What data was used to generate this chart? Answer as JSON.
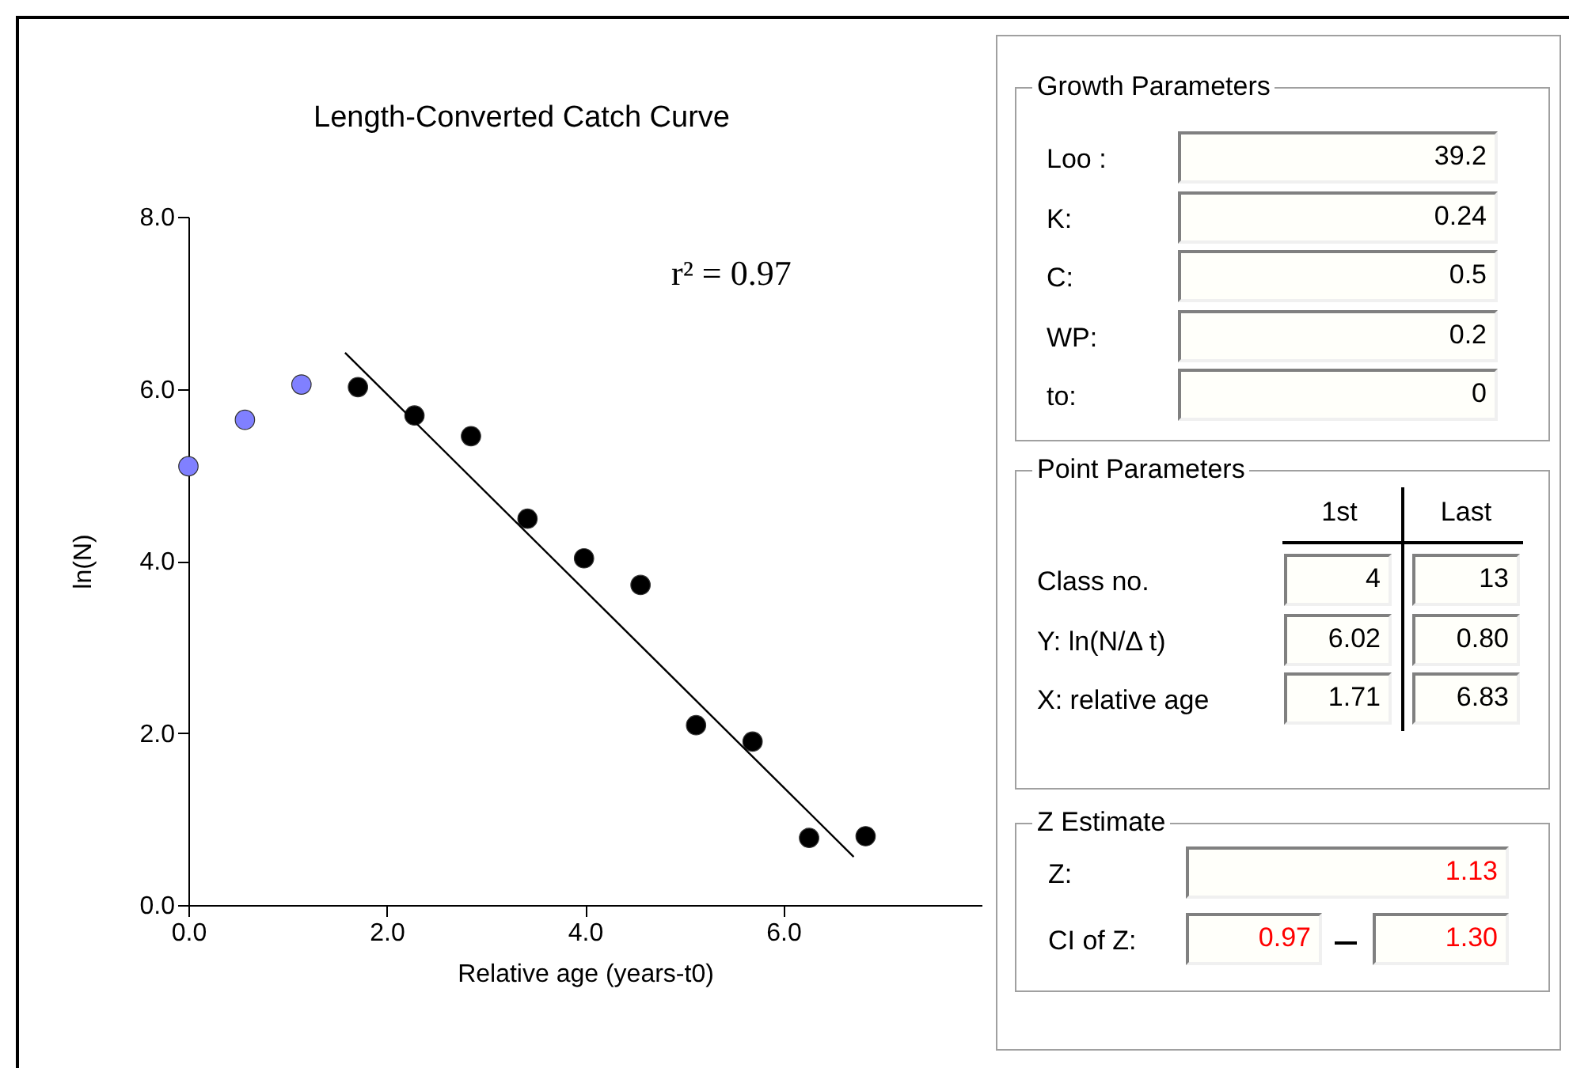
{
  "chart_data": [
    {
      "type": "scatter",
      "title": "Length-Converted Catch Curve",
      "xlabel": "Relative age (years-t0)",
      "ylabel": "ln(N)",
      "annotations": [
        "r² = 0.97"
      ],
      "xlim": [
        0,
        8
      ],
      "xticks": [
        {
          "value": 0,
          "label": "0.0"
        },
        {
          "value": 2,
          "label": "2.0"
        },
        {
          "value": 4,
          "label": "4.0"
        },
        {
          "value": 6,
          "label": "6.0"
        }
      ],
      "ylim": [
        0,
        8
      ],
      "yticks": [
        {
          "value": 0,
          "label": "0.0"
        },
        {
          "value": 2,
          "label": "2.0"
        },
        {
          "value": 4,
          "label": "4.0"
        },
        {
          "value": 6,
          "label": "6.0"
        },
        {
          "value": 8,
          "label": "8.0"
        }
      ],
      "series": [
        {
          "type": "scatter",
          "marker": "circle",
          "color": "#8080ff",
          "x": [
            0,
            0.57,
            1.14
          ],
          "values": [
            5.1,
            5.64,
            6.05
          ]
        },
        {
          "type": "scatter",
          "marker": "circle",
          "color": "#000000",
          "x": [
            1.71,
            2.28,
            2.85,
            3.42,
            3.99,
            4.56,
            5.12,
            5.69,
            6.26,
            6.83
          ],
          "values": [
            6.02,
            5.69,
            5.45,
            4.49,
            4.03,
            3.72,
            2.09,
            1.9,
            0.78,
            0.8
          ]
        },
        {
          "type": "line",
          "color": "#000000",
          "x": [
            1.58,
            6.71
          ],
          "values": [
            6.42,
            0.56
          ]
        }
      ]
    },
    {
      "type": "other",
      "title": "Growth Parameters",
      "y_categories": [
        "Loo :",
        "K:",
        "C:",
        "WP:",
        "to:"
      ],
      "cell_labels": [
        [
          "39.2"
        ],
        [
          "0.24"
        ],
        [
          "0.5"
        ],
        [
          "0.2"
        ],
        [
          "0"
        ]
      ]
    },
    {
      "type": "other",
      "title": "Point Parameters",
      "categories": [
        "1st",
        "Last"
      ],
      "y_categories": [
        "Class no.",
        "Y: ln(N/Δ t)",
        "X: relative age"
      ],
      "cell_labels": [
        [
          "4",
          "13"
        ],
        [
          "6.02",
          "0.80"
        ],
        [
          "1.71",
          "6.83"
        ]
      ]
    },
    {
      "type": "other",
      "title": "Z Estimate",
      "color": "#ff0000",
      "y_categories": [
        "Z:",
        "CI of Z:"
      ],
      "cell_labels": [
        [
          "1.13"
        ],
        [
          "0.97",
          "1.30"
        ]
      ]
    }
  ]
}
